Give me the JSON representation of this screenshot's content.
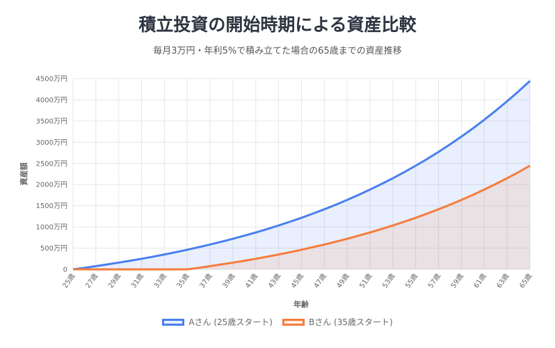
{
  "chart_data": {
    "type": "area",
    "title": "積立投資の開始時期による資産比較",
    "subtitle": "毎月3万円・年利5%で積み立てた場合の65歳までの資産推移",
    "xlabel": "年齢",
    "ylabel": "資産額",
    "ylim": [
      0,
      4500
    ],
    "yticks": [
      "0",
      "500万円",
      "1000万円",
      "1500万円",
      "2000万円",
      "2500万円",
      "3000万円",
      "3500万円",
      "4000万円",
      "4500万円"
    ],
    "x": [
      25,
      26,
      27,
      28,
      29,
      30,
      31,
      32,
      33,
      34,
      35,
      36,
      37,
      38,
      39,
      40,
      41,
      42,
      43,
      44,
      45,
      46,
      47,
      48,
      49,
      50,
      51,
      52,
      53,
      54,
      55,
      56,
      57,
      58,
      59,
      60,
      61,
      62,
      63,
      64,
      65
    ],
    "xtick_labels": [
      "25歳",
      "27歳",
      "29歳",
      "31歳",
      "33歳",
      "35歳",
      "37歳",
      "39歳",
      "41歳",
      "43歳",
      "45歳",
      "47歳",
      "49歳",
      "51歳",
      "53歳",
      "55歳",
      "57歳",
      "59歳",
      "61歳",
      "63歳",
      "65歳"
    ],
    "grid": true,
    "legend_position": "bottom",
    "series": [
      {
        "name": "Aさん (25歳スタート)",
        "color": "#4a7fef",
        "fill": "rgba(74,127,239,0.12)",
        "values": [
          0,
          36.8,
          75.5,
          116.0,
          158.6,
          203.4,
          250.3,
          299.7,
          351.6,
          406.0,
          463.1,
          523.1,
          586.1,
          652.2,
          721.6,
          794.5,
          871.1,
          951.4,
          1035.8,
          1124.5,
          1217.5,
          1315.2,
          1417.8,
          1525.5,
          1638.6,
          1757.4,
          1882.1,
          2013.0,
          2150.5,
          2294.8,
          2446.4,
          2605.5,
          2772.6,
          2948.1,
          3132.3,
          3325.7,
          3528.8,
          3742.1,
          3966.0,
          4201.1,
          4448.0
        ]
      },
      {
        "name": "Bさん (35歳スタート)",
        "color": "#f57c3c",
        "fill": "rgba(245,124,60,0.12)",
        "values": [
          0,
          0,
          0,
          0,
          0,
          0,
          0,
          0,
          0,
          0,
          0,
          36.8,
          75.5,
          116.0,
          158.6,
          203.4,
          250.3,
          299.7,
          351.6,
          406.0,
          463.1,
          523.1,
          586.1,
          652.2,
          721.6,
          794.5,
          871.1,
          951.4,
          1035.8,
          1124.5,
          1217.5,
          1315.2,
          1417.8,
          1525.5,
          1638.6,
          1757.4,
          1882.1,
          2013.0,
          2150.5,
          2294.8,
          2446.4
        ]
      }
    ]
  }
}
